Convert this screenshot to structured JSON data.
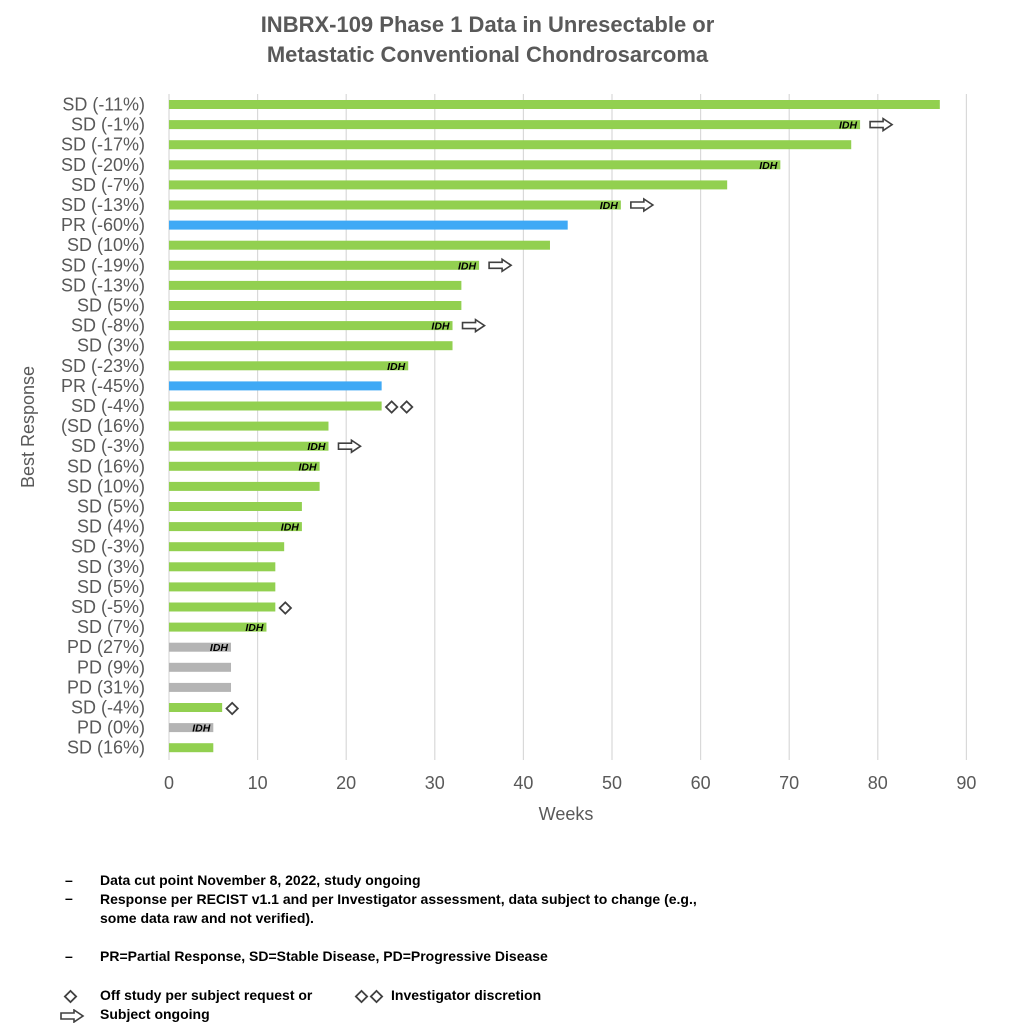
{
  "title": [
    "INBRX-109 Phase 1 Data in Unresectable or",
    "Metastatic Conventional Chondrosarcoma"
  ],
  "colors": {
    "SD": "#92d050",
    "PR": "#3fa9f5",
    "PD": "#b4b4b4",
    "grid": "#d9d9d9",
    "axis_text": "#595959"
  },
  "chart_data": {
    "type": "bar",
    "orientation": "horizontal",
    "xlabel": "Weeks",
    "ylabel": "Best Response",
    "xlim": [
      0,
      90
    ],
    "xticks": [
      0,
      10,
      20,
      30,
      40,
      50,
      60,
      70,
      80,
      90
    ],
    "grid": true,
    "categories": [
      {
        "label": "SD (-11%)",
        "response": "SD",
        "weeks": 87,
        "idh": false,
        "ongoing": false,
        "off_study": 0
      },
      {
        "label": "SD (-1%)",
        "response": "SD",
        "weeks": 78,
        "idh": true,
        "ongoing": true,
        "off_study": 0
      },
      {
        "label": "SD (-17%)",
        "response": "SD",
        "weeks": 77,
        "idh": false,
        "ongoing": false,
        "off_study": 0
      },
      {
        "label": "SD (-20%)",
        "response": "SD",
        "weeks": 69,
        "idh": true,
        "ongoing": false,
        "off_study": 0
      },
      {
        "label": "SD (-7%)",
        "response": "SD",
        "weeks": 63,
        "idh": false,
        "ongoing": false,
        "off_study": 0
      },
      {
        "label": "SD (-13%)",
        "response": "SD",
        "weeks": 51,
        "idh": true,
        "ongoing": true,
        "off_study": 0
      },
      {
        "label": "PR (-60%)",
        "response": "PR",
        "weeks": 45,
        "idh": false,
        "ongoing": false,
        "off_study": 0
      },
      {
        "label": "SD (10%)",
        "response": "SD",
        "weeks": 43,
        "idh": false,
        "ongoing": false,
        "off_study": 0
      },
      {
        "label": "SD (-19%)",
        "response": "SD",
        "weeks": 35,
        "idh": true,
        "ongoing": true,
        "off_study": 0
      },
      {
        "label": "SD (-13%)",
        "response": "SD",
        "weeks": 33,
        "idh": false,
        "ongoing": false,
        "off_study": 0
      },
      {
        "label": "SD (5%)",
        "response": "SD",
        "weeks": 33,
        "idh": false,
        "ongoing": false,
        "off_study": 0
      },
      {
        "label": "SD (-8%)",
        "response": "SD",
        "weeks": 32,
        "idh": true,
        "ongoing": true,
        "off_study": 0
      },
      {
        "label": "SD (3%)",
        "response": "SD",
        "weeks": 32,
        "idh": false,
        "ongoing": false,
        "off_study": 0
      },
      {
        "label": "SD (-23%)",
        "response": "SD",
        "weeks": 27,
        "idh": true,
        "ongoing": false,
        "off_study": 0
      },
      {
        "label": "PR (-45%)",
        "response": "PR",
        "weeks": 24,
        "idh": false,
        "ongoing": false,
        "off_study": 0
      },
      {
        "label": "SD (-4%)",
        "response": "SD",
        "weeks": 24,
        "idh": false,
        "ongoing": false,
        "off_study": 2
      },
      {
        "label": "(SD (16%)",
        "response": "SD",
        "weeks": 18,
        "idh": false,
        "ongoing": false,
        "off_study": 0
      },
      {
        "label": "SD (-3%)",
        "response": "SD",
        "weeks": 18,
        "idh": true,
        "ongoing": true,
        "off_study": 0
      },
      {
        "label": "SD (16%)",
        "response": "SD",
        "weeks": 17,
        "idh": true,
        "ongoing": false,
        "off_study": 0
      },
      {
        "label": "SD (10%)",
        "response": "SD",
        "weeks": 17,
        "idh": false,
        "ongoing": false,
        "off_study": 0
      },
      {
        "label": "SD (5%)",
        "response": "SD",
        "weeks": 15,
        "idh": false,
        "ongoing": false,
        "off_study": 0
      },
      {
        "label": "SD (4%)",
        "response": "SD",
        "weeks": 15,
        "idh": true,
        "ongoing": false,
        "off_study": 0
      },
      {
        "label": "SD (-3%)",
        "response": "SD",
        "weeks": 13,
        "idh": false,
        "ongoing": false,
        "off_study": 0
      },
      {
        "label": "SD (3%)",
        "response": "SD",
        "weeks": 12,
        "idh": false,
        "ongoing": false,
        "off_study": 0
      },
      {
        "label": "SD (5%)",
        "response": "SD",
        "weeks": 12,
        "idh": false,
        "ongoing": false,
        "off_study": 0
      },
      {
        "label": "SD (-5%)",
        "response": "SD",
        "weeks": 12,
        "idh": false,
        "ongoing": false,
        "off_study": 1
      },
      {
        "label": "SD (7%)",
        "response": "SD",
        "weeks": 11,
        "idh": true,
        "ongoing": false,
        "off_study": 0
      },
      {
        "label": "PD (27%)",
        "response": "PD",
        "weeks": 7,
        "idh": true,
        "ongoing": false,
        "off_study": 0
      },
      {
        "label": "PD (9%)",
        "response": "PD",
        "weeks": 7,
        "idh": false,
        "ongoing": false,
        "off_study": 0
      },
      {
        "label": "PD (31%)",
        "response": "PD",
        "weeks": 7,
        "idh": false,
        "ongoing": false,
        "off_study": 0
      },
      {
        "label": "SD (-4%)",
        "response": "SD",
        "weeks": 6,
        "idh": false,
        "ongoing": false,
        "off_study": 1
      },
      {
        "label": "PD (0%)",
        "response": "PD",
        "weeks": 5,
        "idh": true,
        "ongoing": false,
        "off_study": 0
      },
      {
        "label": "SD (16%)",
        "response": "SD",
        "weeks": 5,
        "idh": false,
        "ongoing": false,
        "off_study": 0
      }
    ],
    "idh_label": "IDH"
  },
  "notes": {
    "dash": "–",
    "n1": "Data cut point November 8, 2022, study ongoing",
    "n2": "Response per RECIST v1.1 and per Investigator assessment, data subject to change (e.g., some data raw and not verified).",
    "n3": "PR=Partial Response, SD=Stable Disease, PD=Progressive Disease"
  },
  "legend": {
    "off_study": "Off study per subject request or",
    "investigator": "Investigator discretion",
    "ongoing": "Subject ongoing"
  }
}
